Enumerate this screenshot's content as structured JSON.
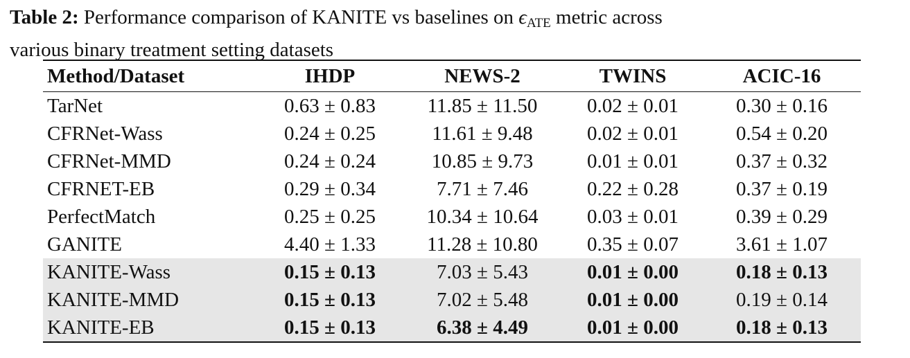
{
  "caption": {
    "label": "Table 2:",
    "text_before_metric": "Performance comparison of KANITE vs baselines on",
    "metric_symbol": "ϵ",
    "metric_subscript": "ATE",
    "text_after_metric": "metric across",
    "line2": "various binary treatment setting datasets"
  },
  "table": {
    "headers": [
      "Method/Dataset",
      "IHDP",
      "NEWS-2",
      "TWINS",
      "ACIC-16"
    ],
    "rows": [
      {
        "method": "TarNet",
        "cells": [
          {
            "v": "0.63 ± 0.83",
            "bold": false
          },
          {
            "v": "11.85 ± 11.50",
            "bold": false
          },
          {
            "v": "0.02 ± 0.01",
            "bold": false
          },
          {
            "v": "0.30 ± 0.16",
            "bold": false
          }
        ],
        "highlight": false
      },
      {
        "method": "CFRNet-Wass",
        "cells": [
          {
            "v": "0.24 ± 0.25",
            "bold": false
          },
          {
            "v": "11.61 ± 9.48",
            "bold": false
          },
          {
            "v": "0.02 ± 0.01",
            "bold": false
          },
          {
            "v": "0.54 ± 0.20",
            "bold": false
          }
        ],
        "highlight": false
      },
      {
        "method": "CFRNet-MMD",
        "cells": [
          {
            "v": "0.24 ± 0.24",
            "bold": false
          },
          {
            "v": "10.85 ± 9.73",
            "bold": false
          },
          {
            "v": "0.01 ± 0.01",
            "bold": false
          },
          {
            "v": "0.37 ± 0.32",
            "bold": false
          }
        ],
        "highlight": false
      },
      {
        "method": "CFRNET-EB",
        "cells": [
          {
            "v": "0.29 ± 0.34",
            "bold": false
          },
          {
            "v": "7.71 ± 7.46",
            "bold": false
          },
          {
            "v": "0.22 ± 0.28",
            "bold": false
          },
          {
            "v": "0.37 ± 0.19",
            "bold": false
          }
        ],
        "highlight": false
      },
      {
        "method": "PerfectMatch",
        "cells": [
          {
            "v": "0.25 ± 0.25",
            "bold": false
          },
          {
            "v": "10.34 ± 10.64",
            "bold": false
          },
          {
            "v": "0.03 ± 0.01",
            "bold": false
          },
          {
            "v": "0.39 ± 0.29",
            "bold": false
          }
        ],
        "highlight": false
      },
      {
        "method": "GANITE",
        "cells": [
          {
            "v": "4.40 ± 1.33",
            "bold": false
          },
          {
            "v": "11.28 ± 10.80",
            "bold": false
          },
          {
            "v": "0.35 ± 0.07",
            "bold": false
          },
          {
            "v": "3.61 ± 1.07",
            "bold": false
          }
        ],
        "highlight": false
      },
      {
        "method": "KANITE-Wass",
        "cells": [
          {
            "v": "0.15 ± 0.13",
            "bold": true
          },
          {
            "v": "7.03 ± 5.43",
            "bold": false
          },
          {
            "v": "0.01 ± 0.00",
            "bold": true
          },
          {
            "v": "0.18 ± 0.13",
            "bold": true
          }
        ],
        "highlight": true
      },
      {
        "method": "KANITE-MMD",
        "cells": [
          {
            "v": "0.15 ± 0.13",
            "bold": true
          },
          {
            "v": "7.02 ± 5.48",
            "bold": false
          },
          {
            "v": "0.01 ± 0.00",
            "bold": true
          },
          {
            "v": "0.19 ± 0.14",
            "bold": false
          }
        ],
        "highlight": true
      },
      {
        "method": "KANITE-EB",
        "cells": [
          {
            "v": "0.15 ± 0.13",
            "bold": true
          },
          {
            "v": "6.38 ± 4.49",
            "bold": true
          },
          {
            "v": "0.01 ± 0.00",
            "bold": true
          },
          {
            "v": "0.18 ± 0.13",
            "bold": true
          }
        ],
        "highlight": true
      }
    ]
  },
  "colors": {
    "highlight_row_bg": "#e6e6e6",
    "text": "#111111"
  }
}
